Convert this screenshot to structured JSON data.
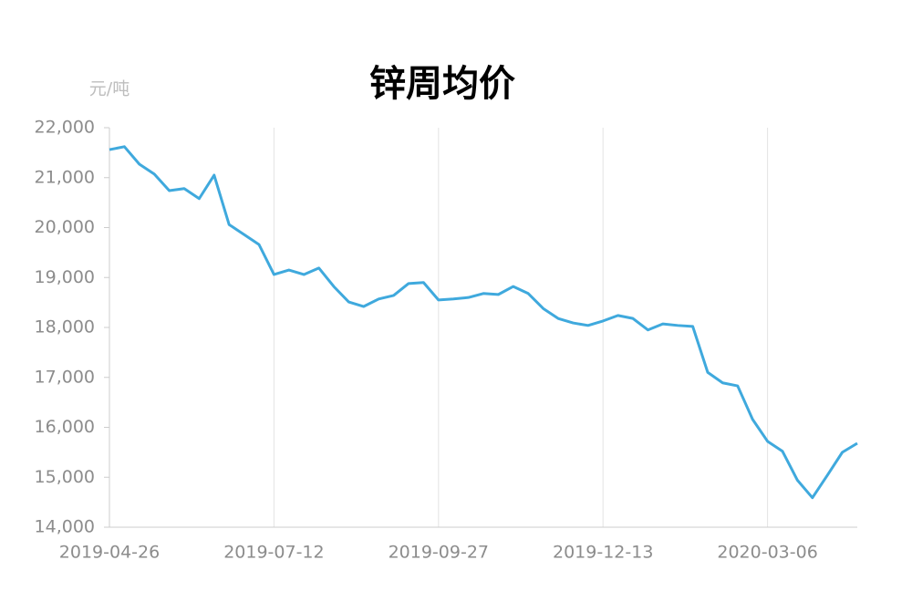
{
  "chart_data": {
    "type": "line",
    "title": "锌周均价",
    "y_axis_label": "元/吨",
    "categories": [
      "2019-04-26",
      null,
      null,
      null,
      null,
      null,
      null,
      null,
      null,
      null,
      null,
      "2019-07-12",
      null,
      null,
      null,
      null,
      null,
      null,
      null,
      null,
      null,
      null,
      "2019-09-27",
      null,
      null,
      null,
      null,
      null,
      null,
      null,
      null,
      null,
      null,
      "2019-12-13",
      null,
      null,
      null,
      null,
      null,
      null,
      null,
      null,
      null,
      null,
      "2020-03-06",
      null,
      null,
      null,
      null,
      null,
      null
    ],
    "series": [
      {
        "name": "锌周均价",
        "color": "#3fa9dd",
        "values": [
          21560,
          21620,
          21270,
          21070,
          20740,
          20780,
          20580,
          21050,
          20060,
          19860,
          19660,
          19060,
          19150,
          19060,
          19190,
          18820,
          18510,
          18420,
          18570,
          18640,
          18880,
          18900,
          18550,
          18570,
          18600,
          18680,
          18660,
          18820,
          18680,
          18380,
          18180,
          18090,
          18040,
          18130,
          18240,
          18180,
          17950,
          18070,
          18040,
          18020,
          17100,
          16890,
          16830,
          16160,
          15720,
          15520,
          14940,
          14590,
          15040,
          15500,
          15680
        ]
      }
    ],
    "ylim": [
      14000,
      22000
    ],
    "yticks": [
      {
        "value": 14000,
        "label": "14,000"
      },
      {
        "value": 15000,
        "label": "15,000"
      },
      {
        "value": 16000,
        "label": "16,000"
      },
      {
        "value": 17000,
        "label": "17,000"
      },
      {
        "value": 18000,
        "label": "18,000"
      },
      {
        "value": 19000,
        "label": "19,000"
      },
      {
        "value": 20000,
        "label": "20,000"
      },
      {
        "value": 21000,
        "label": "21,000"
      },
      {
        "value": 22000,
        "label": "22,000"
      }
    ],
    "grid": "x"
  }
}
